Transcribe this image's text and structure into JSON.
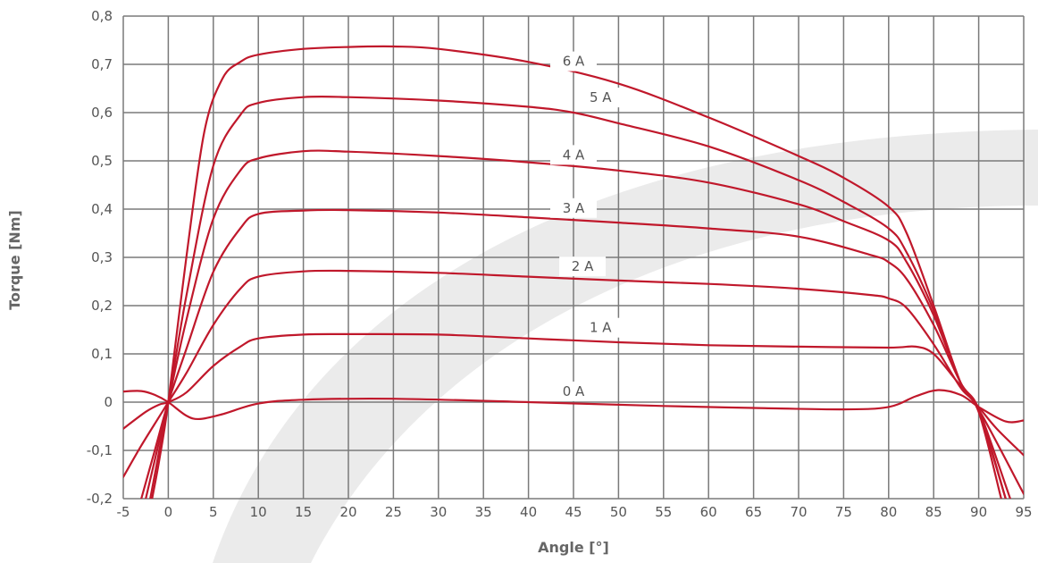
{
  "chart_data": {
    "type": "line",
    "title": "",
    "xlabel": "Angle [°]",
    "ylabel": "Torque [Nm]",
    "xlim": [
      -5,
      95
    ],
    "ylim": [
      -0.2,
      0.8
    ],
    "xticks": [
      -5,
      0,
      5,
      10,
      15,
      20,
      25,
      30,
      35,
      40,
      45,
      50,
      55,
      60,
      65,
      70,
      75,
      80,
      85,
      90,
      95
    ],
    "yticks": [
      -0.2,
      -0.1,
      0,
      0.1,
      0.2,
      0.3,
      0.4,
      0.5,
      0.6,
      0.7,
      0.8
    ],
    "xtick_labels": [
      "-5",
      "0",
      "5",
      "10",
      "15",
      "20",
      "25",
      "30",
      "35",
      "40",
      "45",
      "50",
      "55",
      "60",
      "65",
      "70",
      "75",
      "80",
      "85",
      "90",
      "95"
    ],
    "ytick_labels": [
      "-0,2",
      "-0,1",
      "0",
      "0,1",
      "0,2",
      "0,3",
      "0,4",
      "0,5",
      "0,6",
      "0,7",
      "0,8"
    ],
    "grid": true,
    "line_color": "#c0182b",
    "grid_color": "#7a7a7a",
    "series": [
      {
        "name": "0 A",
        "x": [
          -5,
          -3,
          -1.5,
          0,
          2,
          3.5,
          6,
          10,
          15,
          25,
          40,
          55,
          65,
          75,
          80,
          83,
          85.5,
          88,
          90,
          93,
          95
        ],
        "y": [
          0.022,
          0.023,
          0.015,
          0.0,
          -0.028,
          -0.035,
          -0.025,
          -0.003,
          0.005,
          0.007,
          0.0,
          -0.008,
          -0.012,
          -0.015,
          -0.01,
          0.012,
          0.025,
          0.015,
          -0.01,
          -0.04,
          -0.038
        ]
      },
      {
        "name": "1 A",
        "x": [
          -5,
          -2.5,
          -1,
          0,
          2,
          5,
          8,
          10,
          15,
          20,
          30,
          40,
          50,
          60,
          70,
          80,
          83,
          85,
          87.5,
          90,
          92,
          95
        ],
        "y": [
          -0.055,
          -0.02,
          -0.005,
          0.0,
          0.02,
          0.075,
          0.115,
          0.132,
          0.14,
          0.141,
          0.14,
          0.132,
          0.124,
          0.118,
          0.115,
          0.113,
          0.115,
          0.1,
          0.045,
          -0.01,
          -0.055,
          -0.11
        ]
      },
      {
        "name": "2 A",
        "x": [
          -5,
          -3,
          -1,
          0,
          2,
          5,
          8,
          10,
          15,
          20,
          30,
          40,
          50,
          60,
          70,
          78,
          80,
          82,
          85,
          88,
          90,
          95
        ],
        "y": [
          -0.155,
          -0.09,
          -0.03,
          0.0,
          0.06,
          0.16,
          0.235,
          0.26,
          0.271,
          0.272,
          0.268,
          0.26,
          0.252,
          0.245,
          0.235,
          0.222,
          0.215,
          0.195,
          0.12,
          0.03,
          -0.015,
          -0.19
        ]
      },
      {
        "name": "3 A",
        "x": [
          -3,
          -1.5,
          0,
          2,
          5,
          8,
          10,
          15,
          20,
          30,
          40,
          50,
          60,
          70,
          78,
          80,
          82,
          85,
          88,
          90,
          93.5
        ],
        "y": [
          -0.2,
          -0.1,
          0.0,
          0.11,
          0.27,
          0.36,
          0.39,
          0.397,
          0.398,
          0.393,
          0.383,
          0.372,
          0.36,
          0.343,
          0.305,
          0.29,
          0.255,
          0.16,
          0.04,
          -0.015,
          -0.2
        ]
      },
      {
        "name": "4 A",
        "x": [
          -2.5,
          -1,
          0,
          2,
          5,
          8,
          10,
          15,
          20,
          30,
          40,
          50,
          60,
          70,
          75,
          80,
          82,
          85,
          88,
          90,
          93
        ],
        "y": [
          -0.2,
          -0.08,
          0.0,
          0.17,
          0.38,
          0.48,
          0.505,
          0.52,
          0.519,
          0.51,
          0.497,
          0.48,
          0.455,
          0.41,
          0.375,
          0.335,
          0.29,
          0.18,
          0.04,
          -0.015,
          -0.2
        ]
      },
      {
        "name": "5 A",
        "x": [
          -2,
          -1,
          0,
          2,
          5,
          8,
          10,
          15,
          20,
          30,
          40,
          45,
          50,
          60,
          70,
          75,
          80,
          82,
          85,
          88,
          90,
          93
        ],
        "y": [
          -0.2,
          -0.1,
          0.0,
          0.22,
          0.49,
          0.595,
          0.62,
          0.632,
          0.632,
          0.625,
          0.612,
          0.6,
          0.578,
          0.53,
          0.46,
          0.415,
          0.36,
          0.31,
          0.19,
          0.04,
          -0.02,
          -0.2
        ]
      },
      {
        "name": "6 A",
        "x": [
          -1.8,
          -1,
          0,
          2,
          4,
          6,
          8,
          10,
          15,
          20,
          25,
          30,
          40,
          50,
          60,
          70,
          75,
          80,
          82,
          85,
          88,
          90,
          92.5
        ],
        "y": [
          -0.2,
          -0.12,
          0.0,
          0.3,
          0.56,
          0.67,
          0.705,
          0.72,
          0.732,
          0.736,
          0.737,
          0.732,
          0.705,
          0.66,
          0.59,
          0.51,
          0.465,
          0.405,
          0.35,
          0.2,
          0.04,
          -0.02,
          -0.2
        ]
      }
    ],
    "annotations": [
      {
        "text": "0 A",
        "x": 45,
        "y": 0.013
      },
      {
        "text": "1 A",
        "x": 48,
        "y": 0.145
      },
      {
        "text": "2 A",
        "x": 46,
        "y": 0.272
      },
      {
        "text": "3 A",
        "x": 45,
        "y": 0.393
      },
      {
        "text": "4 A",
        "x": 45,
        "y": 0.503
      },
      {
        "text": "5 A",
        "x": 48,
        "y": 0.622
      },
      {
        "text": "6 A",
        "x": 45,
        "y": 0.697
      }
    ]
  }
}
